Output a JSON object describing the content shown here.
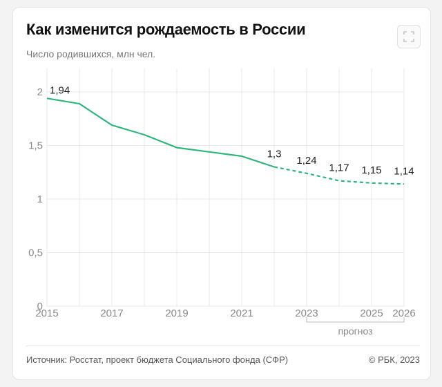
{
  "header": {
    "title": "Как изменится рождаемость в России",
    "subtitle": "Число родившихся, млн чел."
  },
  "icons": {
    "expand": "expand-icon"
  },
  "footer": {
    "source": "Источник: Росстат, проект бюджета Социального фонда (СФР)",
    "copyright": "© РБК, 2023"
  },
  "colors": {
    "line": "#2fb67c",
    "grid": "#e8e8e8",
    "axis_text": "#888888"
  },
  "chart_data": {
    "type": "line",
    "title": "Как изменится рождаемость в России",
    "ylabel": "Число родившихся, млн чел.",
    "xlim": [
      2015,
      2026
    ],
    "ylim": [
      0,
      2
    ],
    "y_ticks": [
      "0",
      "0,5",
      "1",
      "1,5",
      "2"
    ],
    "x_ticks": [
      "2015",
      "2017",
      "2019",
      "2021",
      "2023",
      "2025",
      "2026"
    ],
    "series": [
      {
        "style": "solid",
        "x": [
          2015,
          2016,
          2017,
          2018,
          2019,
          2020,
          2021,
          2022
        ],
        "y": [
          1.94,
          1.89,
          1.69,
          1.6,
          1.48,
          1.44,
          1.4,
          1.3
        ]
      },
      {
        "style": "dashed",
        "x": [
          2022,
          2023,
          2024,
          2025,
          2026
        ],
        "y": [
          1.3,
          1.24,
          1.17,
          1.15,
          1.14
        ]
      }
    ],
    "data_labels": [
      {
        "x": 2015,
        "y": 1.94,
        "text": "1,94"
      },
      {
        "x": 2022,
        "y": 1.3,
        "text": "1,3"
      },
      {
        "x": 2023,
        "y": 1.24,
        "text": "1,24"
      },
      {
        "x": 2024,
        "y": 1.17,
        "text": "1,17"
      },
      {
        "x": 2025,
        "y": 1.15,
        "text": "1,15"
      },
      {
        "x": 2026,
        "y": 1.14,
        "text": "1,14"
      }
    ],
    "forecast": {
      "label": "прогноз",
      "from": 2023,
      "to": 2026
    },
    "grid": true
  }
}
